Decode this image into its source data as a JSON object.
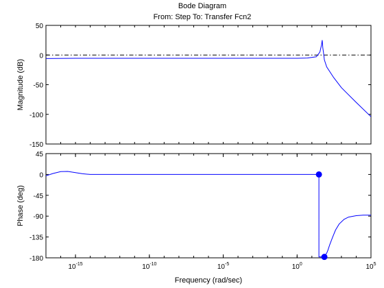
{
  "title": "Bode Diagram",
  "subtitle": "From: Step  To: Transfer Fcn2",
  "colors": {
    "background": "#ffffff",
    "axes": "#000000",
    "series": "#0000ff",
    "reference": "#000000"
  },
  "chart_data": [
    {
      "type": "line",
      "panel": "magnitude",
      "ylabel": "Magnitude (dB)",
      "xscale": "log",
      "xlim": [
        1e-17,
        100000
      ],
      "ylim": [
        -150,
        50
      ],
      "yticks": [
        50,
        0,
        -50,
        -100,
        -150
      ],
      "ytick_labels": [
        "50",
        "0",
        "-50",
        "-100",
        "-150"
      ],
      "reference_lines": [
        {
          "y": 0,
          "style": "dash-dot"
        }
      ],
      "series": [
        {
          "x": [
            1e-17,
            1e-15,
            1e-10,
            1e-05,
            1,
            5,
            20,
            35,
            45,
            50,
            55,
            62,
            70,
            100,
            300,
            1000,
            10000,
            100000
          ],
          "y": [
            -6,
            -5.5,
            -5.5,
            -5.5,
            -5.5,
            -5,
            -3,
            5,
            17,
            25,
            12,
            3,
            -8,
            -20,
            -38,
            -55,
            -80,
            -104
          ]
        }
      ]
    },
    {
      "type": "line",
      "panel": "phase",
      "ylabel": "Phase (deg)",
      "xlabel": "Frequency  (rad/sec)",
      "xscale": "log",
      "xlim": [
        1e-17,
        100000
      ],
      "ylim": [
        -180,
        45
      ],
      "yticks": [
        45,
        0,
        -45,
        -90,
        -135,
        -180
      ],
      "ytick_labels": [
        "45",
        "0",
        "-45",
        "-90",
        "-135",
        "-180"
      ],
      "xticks": [
        1e-15,
        1e-10,
        1e-05,
        1,
        100000
      ],
      "xtick_labels": [
        {
          "base": "10",
          "exp": "-15"
        },
        {
          "base": "10",
          "exp": "-10"
        },
        {
          "base": "10",
          "exp": "-5"
        },
        {
          "base": "10",
          "exp": "0"
        },
        {
          "base": "10",
          "exp": "5"
        }
      ],
      "reference_lines": [
        {
          "y": -180,
          "style": "dash-dot"
        }
      ],
      "series": [
        {
          "x": [
            1e-17,
            3e-17,
            1e-16,
            3e-16,
            1e-15,
            3e-15,
            1e-14,
            1e-12,
            1e-08,
            0.0001,
            1,
            10,
            30,
            30,
            70,
            90,
            100,
            120,
            160,
            250,
            400,
            700,
            1500,
            3000,
            10000,
            30000,
            100000
          ],
          "y": [
            -3,
            2,
            6,
            6.5,
            4,
            1.5,
            0,
            0,
            0,
            0,
            0,
            0,
            0,
            -178,
            -178,
            -172,
            -170,
            -164,
            -152,
            -136,
            -120,
            -107,
            -97,
            -92,
            -89,
            -88,
            -88
          ]
        }
      ],
      "markers": [
        {
          "x": 30,
          "y": 0
        },
        {
          "x": 70,
          "y": -178
        }
      ]
    }
  ]
}
